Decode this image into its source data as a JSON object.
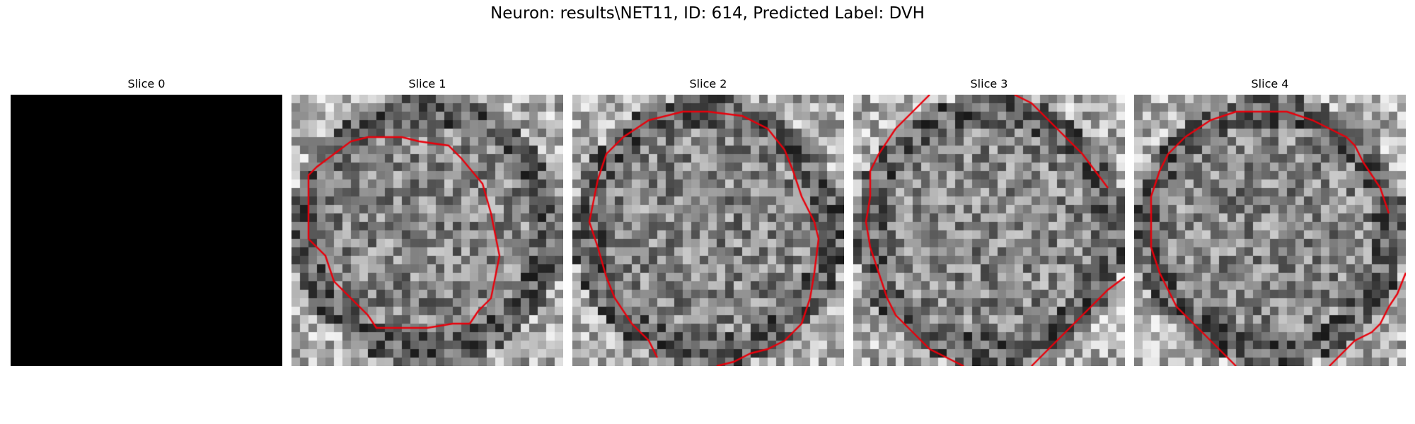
{
  "figure": {
    "suptitle": "Neuron: results\\NET11, ID: 614, Predicted Label: DVH"
  },
  "panels": [
    {
      "title": "Slice 0",
      "image": "black-empty-slice",
      "contour": false
    },
    {
      "title": "Slice 1",
      "image": "grayscale-noise-slice",
      "contour": true
    },
    {
      "title": "Slice 2",
      "image": "grayscale-noise-slice",
      "contour": true
    },
    {
      "title": "Slice 3",
      "image": "grayscale-noise-slice",
      "contour": true
    },
    {
      "title": "Slice 4",
      "image": "grayscale-noise-slice",
      "contour": true
    }
  ],
  "colors": {
    "contour": "#e8000b",
    "background": "#ffffff",
    "empty_slice": "#000000"
  }
}
